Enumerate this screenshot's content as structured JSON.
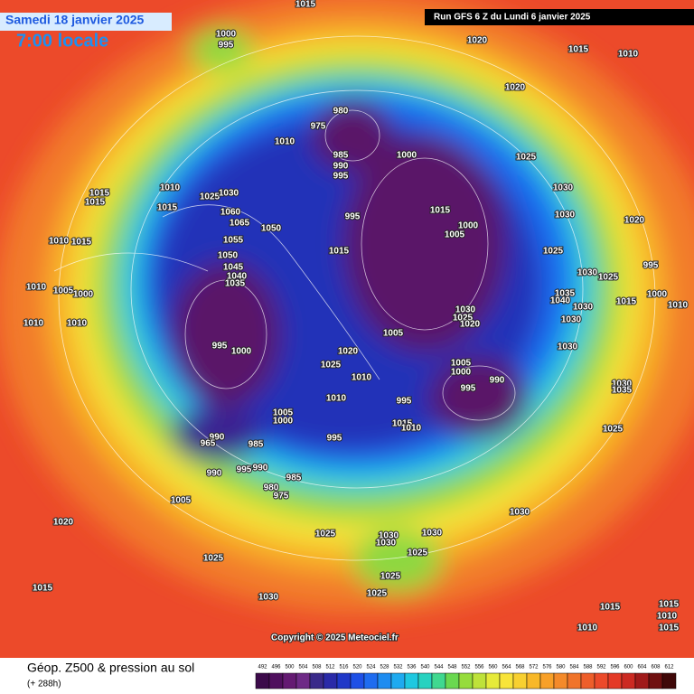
{
  "header": {
    "date": "Samedi 18 janvier 2025",
    "time": "7:00 locale",
    "run": "Run GFS 6 Z du Lundi 6 janvier 2025"
  },
  "map": {
    "copyright": "Copyright © 2025 Meteociel.fr",
    "isobar_labels": [
      1015,
      1000,
      995,
      1020,
      1015,
      1010,
      1020,
      980,
      975,
      1010,
      1000,
      985,
      990,
      995,
      1025,
      1015,
      1015,
      1010,
      1025,
      1030,
      1015,
      1060,
      1065,
      1050,
      995,
      1015,
      1000,
      1005,
      1030,
      1030,
      1020,
      1010,
      1015,
      1055,
      1015,
      1025,
      1050,
      1045,
      1040,
      1035,
      995,
      1030,
      1025,
      1010,
      1005,
      1000,
      1035,
      1040,
      1030,
      1015,
      1000,
      1010,
      1030,
      1025,
      1020,
      1010,
      1010,
      1030,
      1005,
      995,
      1000,
      1020,
      1030,
      1025,
      1010,
      1005,
      1000,
      990,
      995,
      1030,
      1035,
      1010,
      995,
      1005,
      1000,
      1015,
      1010,
      995,
      990,
      965,
      985,
      1025,
      990,
      995,
      990,
      985,
      980,
      975,
      1005,
      1030,
      1020,
      1025,
      1030,
      1030,
      1030,
      1025,
      1025,
      1025,
      1025,
      1015,
      1030,
      1015,
      1015,
      1010,
      1010,
      1015
    ]
  },
  "footer": {
    "title": "Géop. Z500 & pression au sol",
    "lead": "(+ 288h)",
    "colorbar": {
      "levels": [
        492,
        496,
        500,
        504,
        508,
        512,
        516,
        520,
        524,
        528,
        532,
        536,
        540,
        544,
        548,
        552,
        556,
        560,
        564,
        568,
        572,
        576,
        580,
        584,
        588,
        592,
        596,
        600,
        604,
        608,
        612
      ],
      "colors": [
        "#3c0a4a",
        "#50105e",
        "#641a72",
        "#6e2a86",
        "#3a2a8a",
        "#2a2aa8",
        "#2038c8",
        "#1e50e6",
        "#1e6cf0",
        "#1e8cf0",
        "#1eaaf0",
        "#1ec8e0",
        "#28d2c0",
        "#40d890",
        "#6ad850",
        "#96dc3c",
        "#bee23a",
        "#e6ea3a",
        "#f8e43a",
        "#f8d030",
        "#f8b828",
        "#f8a028",
        "#f48a2a",
        "#f0742a",
        "#ee5e2a",
        "#ec4a2a",
        "#e43a26",
        "#cc2a22",
        "#a01a1a",
        "#701010",
        "#400808"
      ]
    }
  }
}
